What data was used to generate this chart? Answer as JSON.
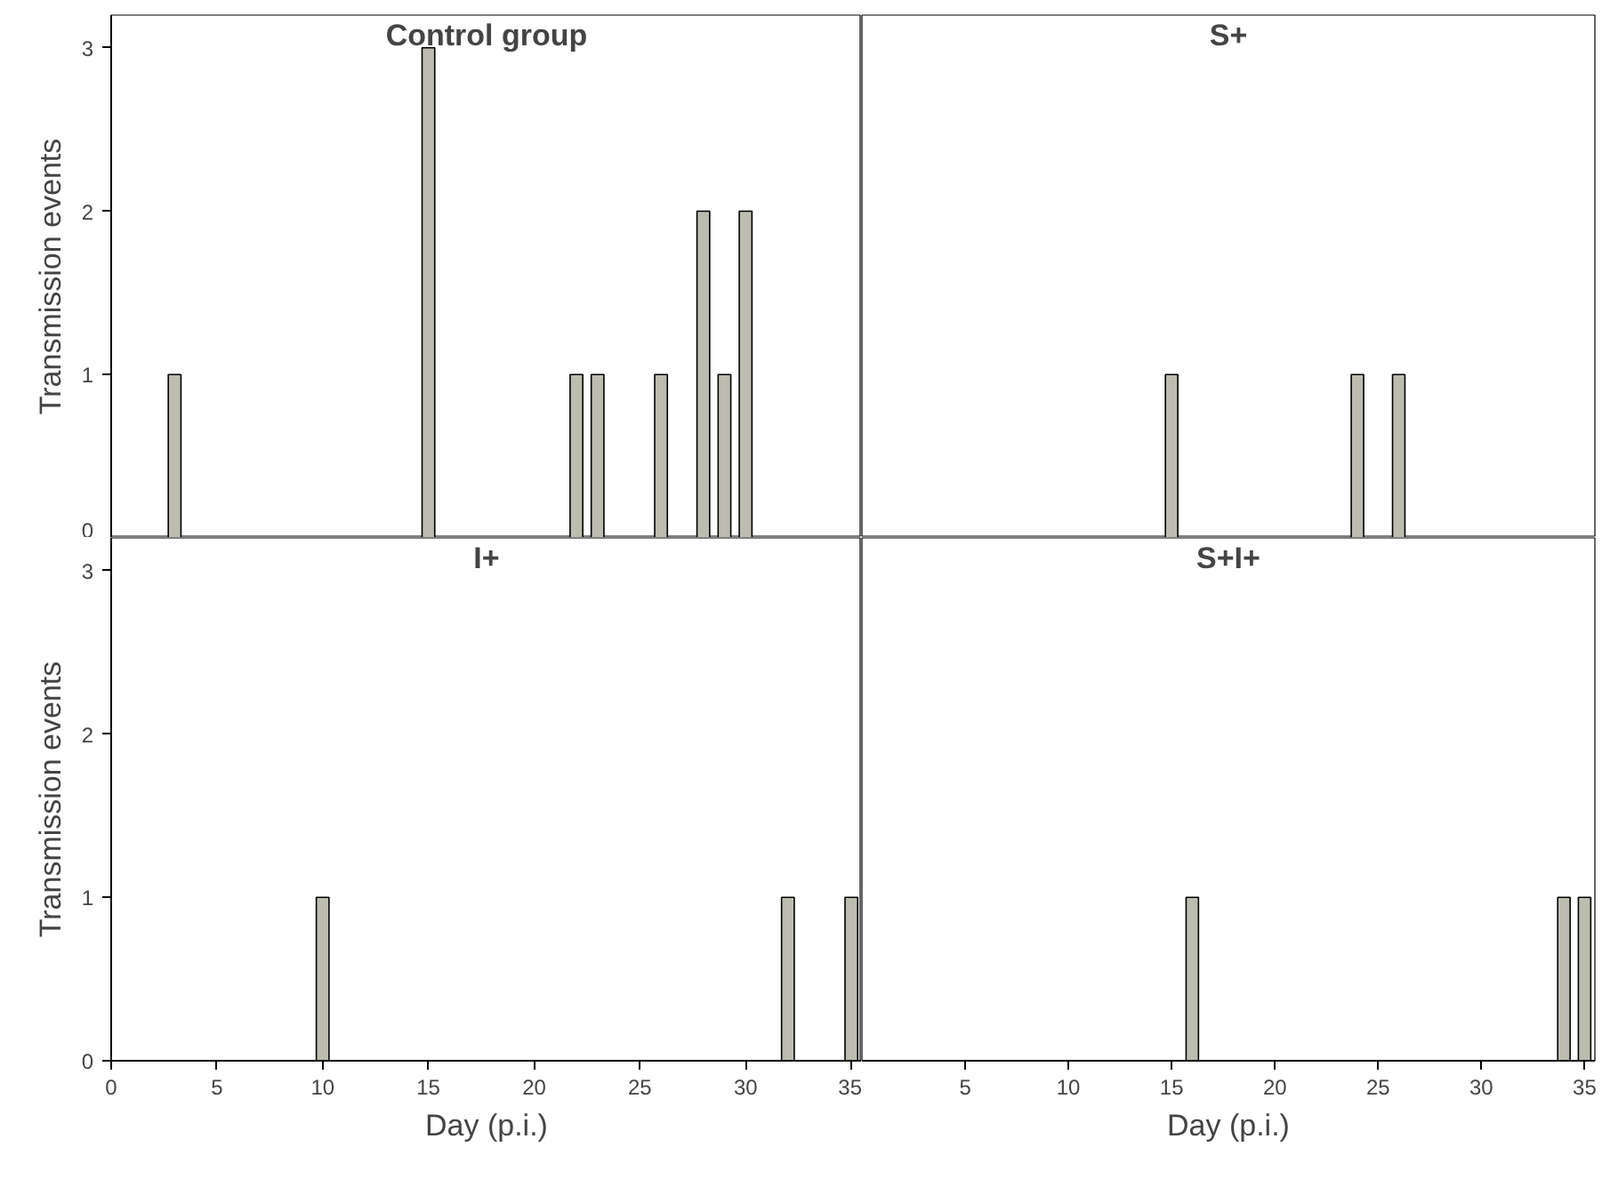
{
  "chart_data": [
    {
      "type": "bar",
      "title": "Control group",
      "ylabel": "Transmission events",
      "x": [
        3,
        15,
        22,
        23,
        26,
        28,
        29,
        30
      ],
      "values": [
        1,
        3,
        1,
        1,
        1,
        2,
        1,
        2
      ],
      "color": "#bcbcb0",
      "xlim": [
        0,
        35.5
      ],
      "ylim": [
        0,
        3.2
      ],
      "xticks": [
        0,
        5,
        10,
        15,
        20,
        25,
        30,
        35
      ],
      "yticks": [
        0,
        1,
        2,
        3
      ],
      "tick_labels": "y",
      "grid": false
    },
    {
      "type": "bar",
      "title": "S+",
      "x": [
        15,
        24,
        26
      ],
      "values": [
        1,
        1,
        1
      ],
      "color": "#bcbcb0",
      "xlim": [
        0,
        35.5
      ],
      "ylim": [
        0,
        3.2
      ],
      "xticks": [
        0,
        5,
        10,
        15,
        20,
        25,
        30,
        35
      ],
      "yticks": [
        0,
        1,
        2,
        3
      ],
      "tick_labels": false,
      "grid": false
    },
    {
      "type": "bar",
      "title": "I+",
      "ylabel": "Transmission events",
      "xlabel": "Day (p.i.)",
      "x": [
        10,
        32,
        35
      ],
      "values": [
        1,
        1,
        1
      ],
      "color": "#bcbcb0",
      "xlim": [
        0,
        35.5
      ],
      "ylim": [
        0,
        3.2
      ],
      "xticks": [
        0,
        5,
        10,
        15,
        20,
        25,
        30,
        35
      ],
      "yticks": [
        0,
        1,
        2,
        3
      ],
      "grid": false
    },
    {
      "type": "bar",
      "title": "S+I+",
      "xlabel": "Day (p.i.)",
      "x": [
        16,
        34,
        35
      ],
      "values": [
        1,
        1,
        1
      ],
      "color": "#bcbcb0",
      "xlim": [
        0,
        35.5
      ],
      "ylim": [
        0,
        3.2
      ],
      "xticks": [
        5,
        10,
        15,
        20,
        25,
        30,
        35
      ],
      "yticks": [
        0,
        1,
        2,
        3
      ],
      "tick_labels": "x",
      "grid": false
    }
  ]
}
